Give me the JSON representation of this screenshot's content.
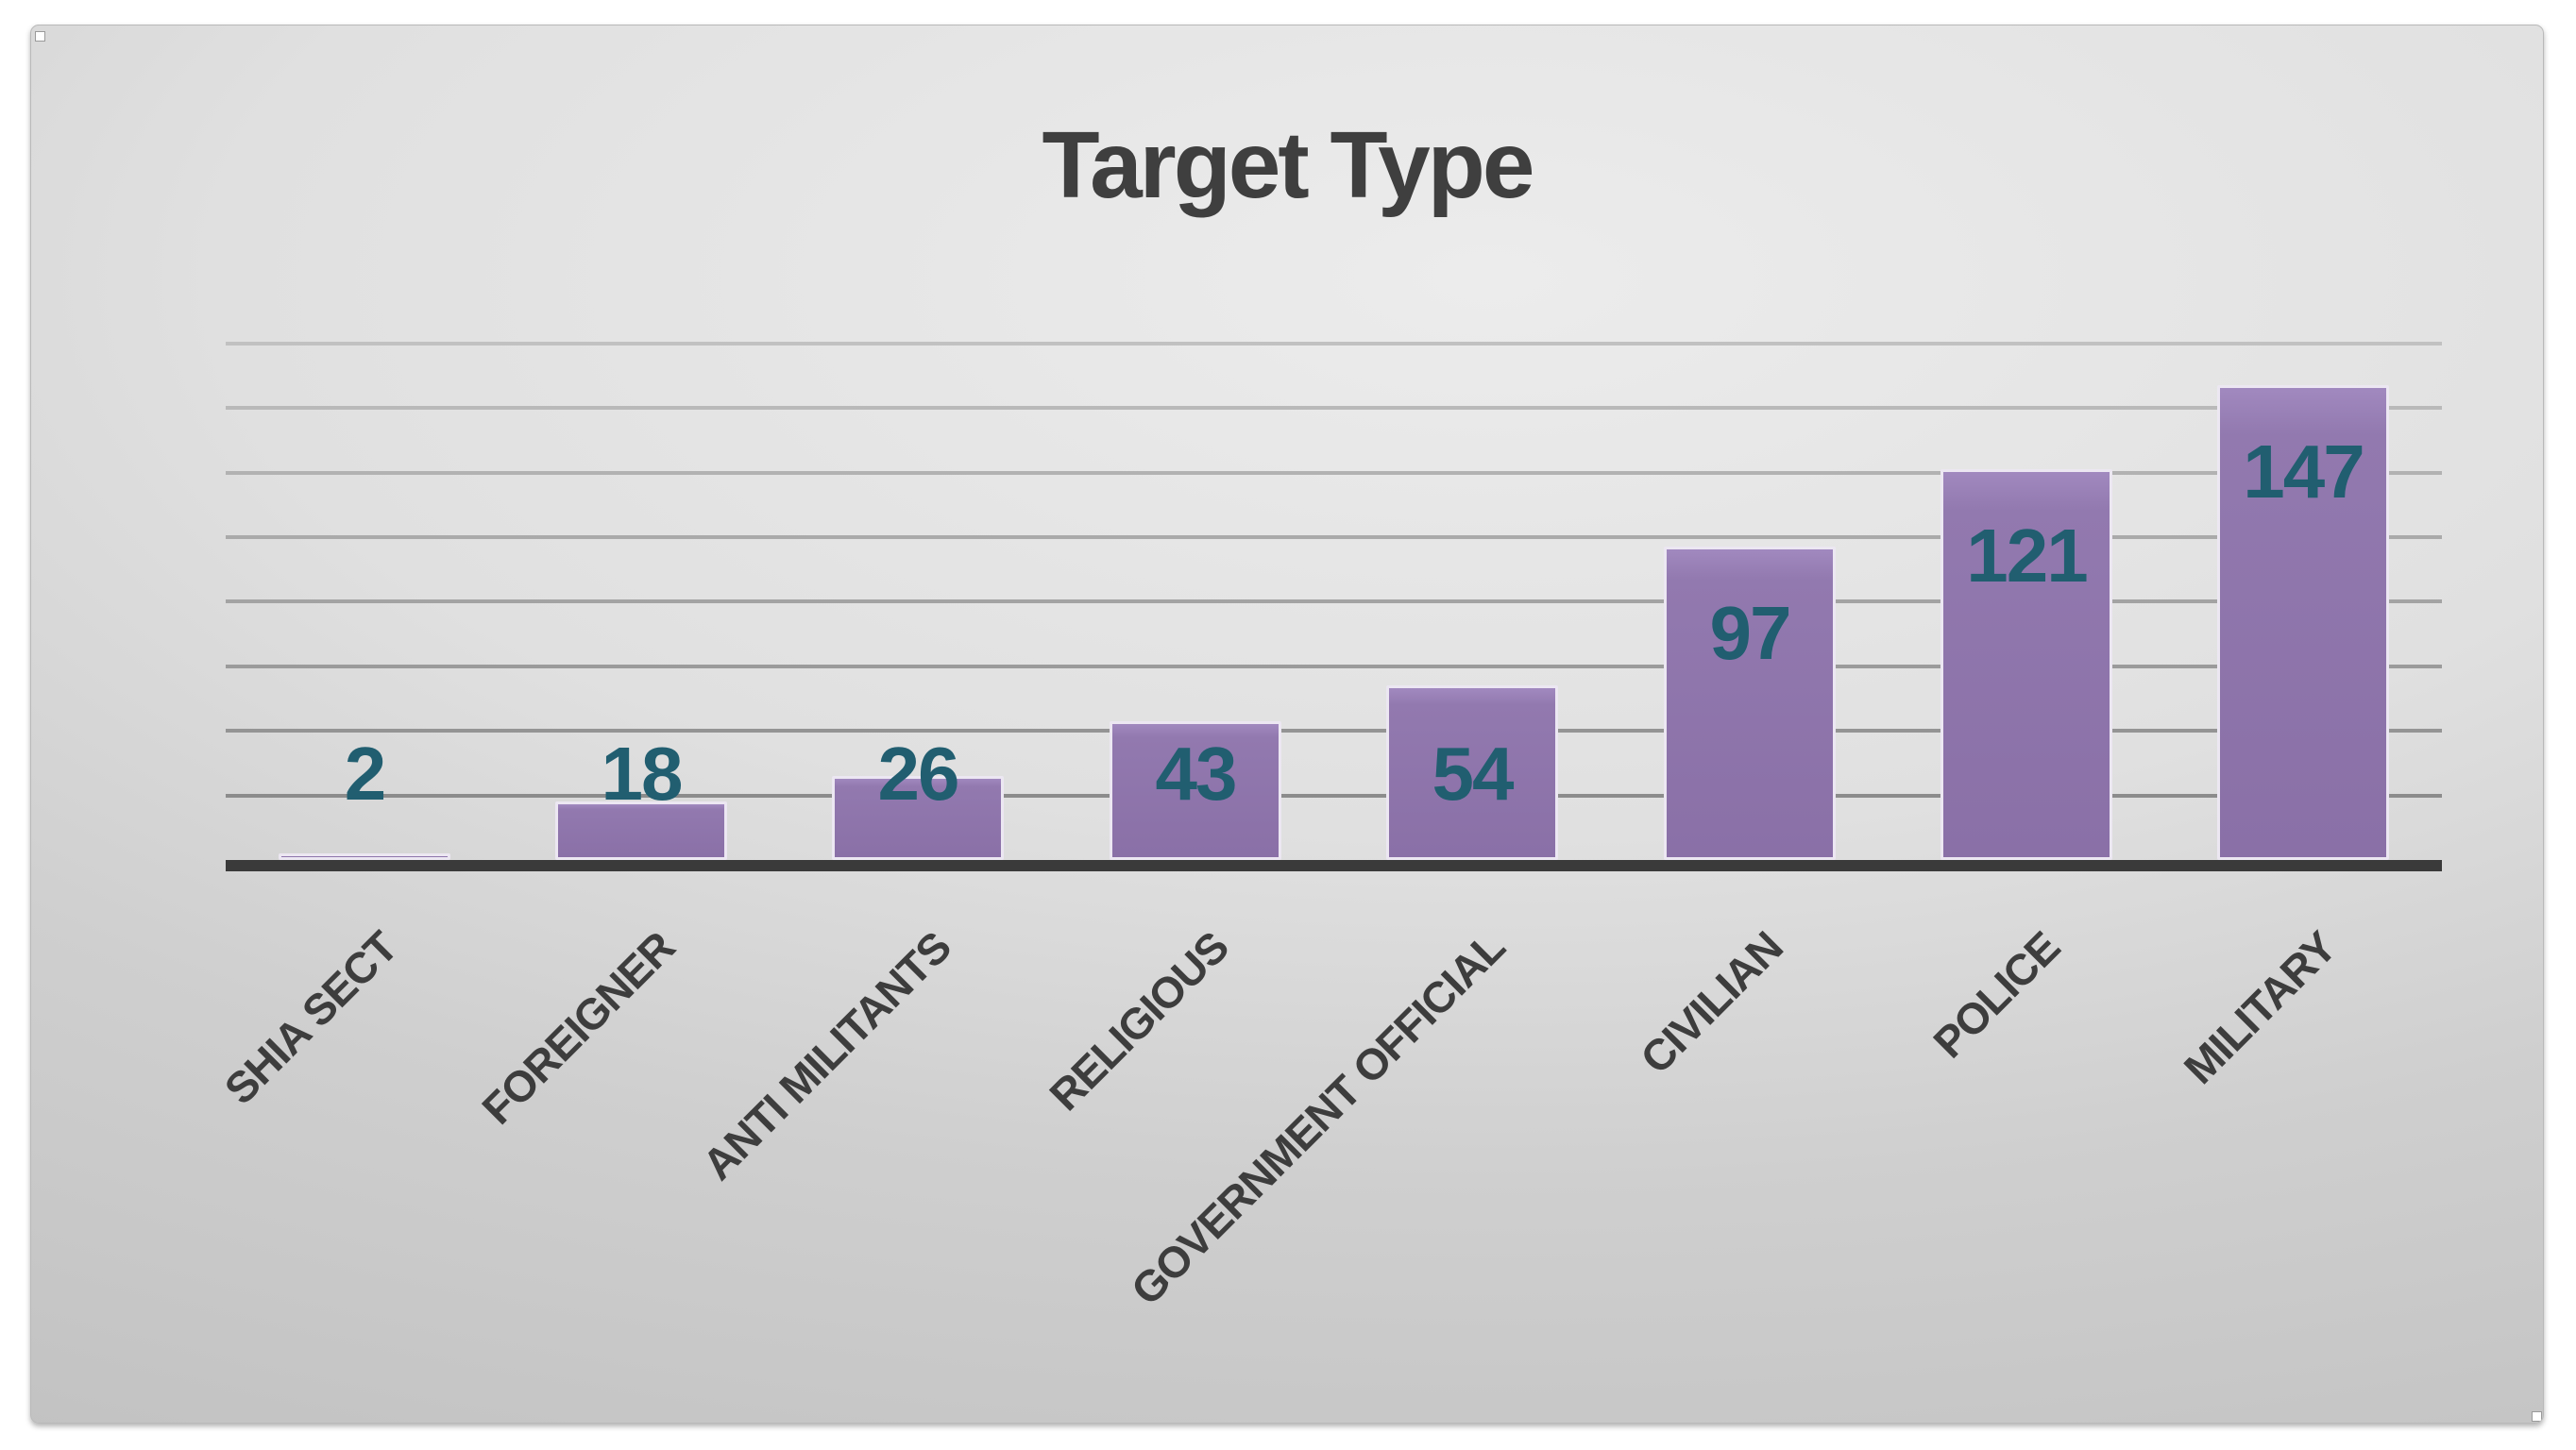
{
  "chart_data": {
    "type": "bar",
    "title": "Target Type",
    "categories": [
      "SHIA SECT",
      "FOREIGNER",
      "ANTI MILITANTS",
      "RELIGIOUS",
      "GOVERNMENT OFFICIAL",
      "CIVILIAN",
      "POLICE",
      "MILITARY"
    ],
    "values": [
      2,
      18,
      26,
      43,
      54,
      97,
      121,
      147
    ],
    "xlabel": "",
    "ylabel": "",
    "ylim": [
      0,
      160
    ],
    "gridline_step": 20,
    "grid": true,
    "legend_position": "none",
    "data_labels_shown": true
  },
  "colors": {
    "title_text": "#3f3f3f",
    "category_text": "#3d3d3d",
    "data_label_text": "#215e70",
    "bar_fill_top": "#a189bf",
    "bar_fill_bottom": "#8a70a7",
    "bar_border": "#ece7f2",
    "axis_line": "#3a3a3a",
    "gridline_dark": "#8c8c8c",
    "gridline_light": "#c0c0c0",
    "slide_bg_center": "#ececec",
    "slide_bg_edge": "#c2c2c2",
    "page_bg": "#ffffff"
  }
}
